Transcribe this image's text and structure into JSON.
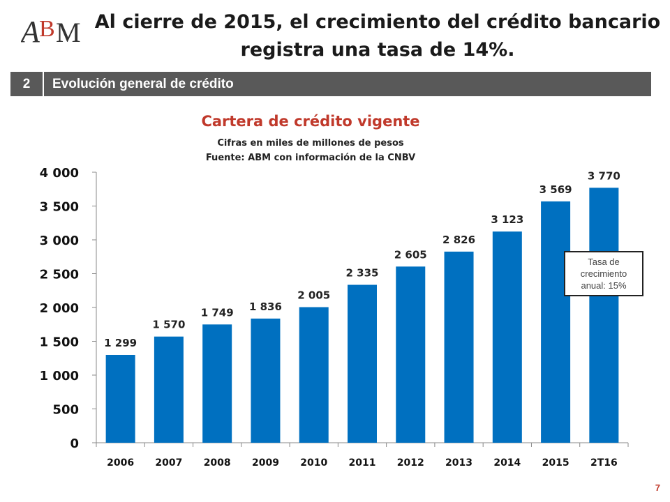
{
  "header": {
    "logo_text": "ABM",
    "title": "Al cierre de 2015, el crecimiento del crédito bancario registra una tasa de 14%."
  },
  "section": {
    "number": "2",
    "label": "Evolución general de crédito"
  },
  "colors": {
    "bar": "#0070C0",
    "title_red": "#C0392B",
    "section_bg": "#595959",
    "logo_red": "#C0392B"
  },
  "chart_data": {
    "type": "bar",
    "title": "Cartera de crédito vigente",
    "subtitles": [
      "Cifras en miles de millones de pesos",
      "Fuente: ABM con información de la CNBV"
    ],
    "categories": [
      "2006",
      "2007",
      "2008",
      "2009",
      "2010",
      "2011",
      "2012",
      "2013",
      "2014",
      "2015",
      "2T16"
    ],
    "values": [
      1299,
      1570,
      1749,
      1836,
      2005,
      2335,
      2605,
      2826,
      3123,
      3569,
      3770
    ],
    "value_labels": [
      "1 299",
      "1 570",
      "1 749",
      "1 836",
      "2 005",
      "2 335",
      "2 605",
      "2 826",
      "3 123",
      "3 569",
      "3 770"
    ],
    "ylim": [
      0,
      4000
    ],
    "yticks": [
      0,
      500,
      1000,
      1500,
      2000,
      2500,
      3000,
      3500,
      4000
    ],
    "ytick_labels": [
      "0",
      "500",
      "1 000",
      "1 500",
      "2 000",
      "2 500",
      "3 000",
      "3 500",
      "4 000"
    ],
    "xlabel": "",
    "ylabel": "",
    "grid": false,
    "annotation": "Tasa de crecimiento anual: 15%"
  },
  "footer": {
    "page_number": "7"
  }
}
